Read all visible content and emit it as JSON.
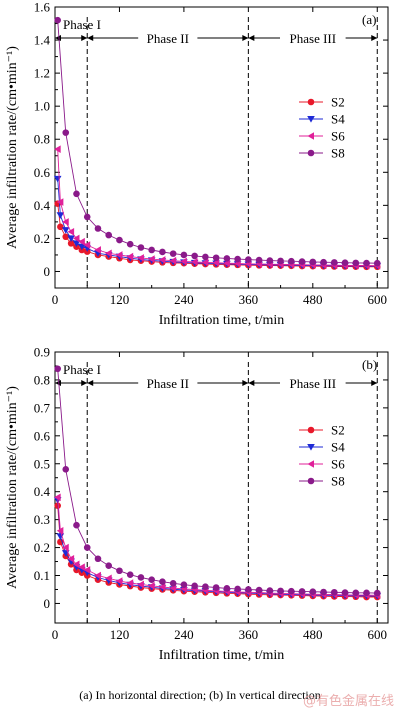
{
  "caption": "(a) In horizontal direction; (b) In vertical direction",
  "watermark": "@有色金属在线",
  "colors": {
    "S2": "#e8182a",
    "S4": "#1e2ad6",
    "S6": "#e0209a",
    "S8": "#8a1a8a"
  },
  "chart_data": [
    {
      "type": "line",
      "panel_tag": "(a)",
      "xlabel": "Infiltration time, t/min",
      "ylabel": "Average infiltration rate/(cm•min⁻¹)",
      "xlim": [
        0,
        620
      ],
      "ylim": [
        -0.1,
        1.6
      ],
      "xticks": [
        0,
        120,
        240,
        360,
        480,
        600
      ],
      "yticks": [
        0,
        0.2,
        0.4,
        0.6,
        0.8,
        1.0,
        1.2,
        1.4,
        1.6
      ],
      "ytick_labels": [
        "0",
        "0.2",
        "0.4",
        "0.6",
        "0.8",
        "1.0",
        "1.2",
        "1.4",
        "1.6"
      ],
      "phase_lines": [
        60,
        360,
        600
      ],
      "phases": [
        {
          "label": "Phase I",
          "from": 0,
          "to": 60
        },
        {
          "label": "Phase II",
          "from": 60,
          "to": 360
        },
        {
          "label": "Phase III",
          "from": 360,
          "to": 600
        }
      ],
      "legend_position": "right",
      "series": [
        {
          "name": "S2",
          "marker": "circle",
          "x": [
            5,
            10,
            20,
            30,
            40,
            50,
            60,
            80,
            100,
            120,
            140,
            160,
            180,
            200,
            220,
            240,
            260,
            280,
            300,
            320,
            340,
            360,
            380,
            400,
            420,
            440,
            460,
            480,
            500,
            520,
            540,
            560,
            580,
            600
          ],
          "y": [
            0.41,
            0.27,
            0.21,
            0.17,
            0.15,
            0.13,
            0.12,
            0.1,
            0.09,
            0.08,
            0.07,
            0.065,
            0.06,
            0.055,
            0.052,
            0.05,
            0.047,
            0.045,
            0.043,
            0.041,
            0.04,
            0.038,
            0.037,
            0.036,
            0.035,
            0.034,
            0.033,
            0.032,
            0.031,
            0.03,
            0.03,
            0.029,
            0.028,
            0.028
          ]
        },
        {
          "name": "S4",
          "marker": "triangle-down",
          "x": [
            5,
            10,
            20,
            30,
            40,
            50,
            60,
            80,
            100,
            120,
            140,
            160,
            180,
            200,
            220,
            240,
            260,
            280,
            300,
            320,
            340,
            360,
            380,
            400,
            420,
            440,
            460,
            480,
            500,
            520,
            540,
            560,
            580,
            600
          ],
          "y": [
            0.56,
            0.34,
            0.25,
            0.2,
            0.17,
            0.15,
            0.14,
            0.11,
            0.1,
            0.09,
            0.08,
            0.073,
            0.067,
            0.062,
            0.058,
            0.055,
            0.052,
            0.05,
            0.048,
            0.046,
            0.044,
            0.042,
            0.041,
            0.04,
            0.039,
            0.038,
            0.037,
            0.036,
            0.035,
            0.034,
            0.034,
            0.033,
            0.032,
            0.032
          ]
        },
        {
          "name": "S6",
          "marker": "triangle-left",
          "x": [
            5,
            10,
            20,
            30,
            40,
            50,
            60,
            80,
            100,
            120,
            140,
            160,
            180,
            200,
            220,
            240,
            260,
            280,
            300,
            320,
            340,
            360,
            380,
            400,
            420,
            440,
            460,
            480,
            500,
            520,
            540,
            560,
            580,
            600
          ],
          "y": [
            0.74,
            0.42,
            0.3,
            0.24,
            0.2,
            0.18,
            0.16,
            0.13,
            0.11,
            0.1,
            0.09,
            0.082,
            0.075,
            0.07,
            0.065,
            0.061,
            0.058,
            0.055,
            0.053,
            0.05,
            0.048,
            0.046,
            0.045,
            0.044,
            0.043,
            0.042,
            0.041,
            0.04,
            0.039,
            0.038,
            0.037,
            0.036,
            0.036,
            0.035
          ]
        },
        {
          "name": "S8",
          "marker": "circle",
          "x": [
            5,
            20,
            40,
            60,
            80,
            100,
            120,
            140,
            160,
            180,
            200,
            220,
            240,
            260,
            280,
            300,
            320,
            340,
            360,
            380,
            400,
            420,
            440,
            460,
            480,
            500,
            520,
            540,
            560,
            580,
            600
          ],
          "y": [
            1.52,
            0.84,
            0.47,
            0.33,
            0.26,
            0.22,
            0.19,
            0.165,
            0.145,
            0.13,
            0.118,
            0.108,
            0.1,
            0.094,
            0.088,
            0.083,
            0.079,
            0.075,
            0.072,
            0.069,
            0.066,
            0.064,
            0.062,
            0.06,
            0.058,
            0.056,
            0.055,
            0.053,
            0.052,
            0.051,
            0.05
          ]
        }
      ]
    },
    {
      "type": "line",
      "panel_tag": "(b)",
      "xlabel": "Infiltration time, t/min",
      "ylabel": "Average infiltration rate/(cm•min⁻¹)",
      "xlim": [
        0,
        620
      ],
      "ylim": [
        -0.07,
        0.9
      ],
      "xticks": [
        0,
        120,
        240,
        360,
        480,
        600
      ],
      "yticks": [
        0,
        0.1,
        0.2,
        0.3,
        0.4,
        0.5,
        0.6,
        0.7,
        0.8,
        0.9
      ],
      "ytick_labels": [
        "0",
        "0.1",
        "0.2",
        "0.3",
        "0.4",
        "0.5",
        "0.6",
        "0.7",
        "0.8",
        "0.9"
      ],
      "phase_lines": [
        60,
        360,
        600
      ],
      "phases": [
        {
          "label": "Phase I",
          "from": 0,
          "to": 60
        },
        {
          "label": "Phase II",
          "from": 60,
          "to": 360
        },
        {
          "label": "Phase III",
          "from": 360,
          "to": 600
        }
      ],
      "legend_position": "right",
      "series": [
        {
          "name": "S2",
          "marker": "circle",
          "x": [
            5,
            10,
            20,
            30,
            40,
            50,
            60,
            80,
            100,
            120,
            140,
            160,
            180,
            200,
            220,
            240,
            260,
            280,
            300,
            320,
            340,
            360,
            380,
            400,
            420,
            440,
            460,
            480,
            500,
            520,
            540,
            560,
            580,
            600
          ],
          "y": [
            0.35,
            0.22,
            0.17,
            0.14,
            0.12,
            0.11,
            0.1,
            0.085,
            0.075,
            0.068,
            0.062,
            0.057,
            0.053,
            0.05,
            0.047,
            0.044,
            0.042,
            0.04,
            0.038,
            0.036,
            0.035,
            0.033,
            0.032,
            0.031,
            0.03,
            0.029,
            0.028,
            0.027,
            0.026,
            0.025,
            0.025,
            0.024,
            0.023,
            0.023
          ]
        },
        {
          "name": "S4",
          "marker": "triangle-down",
          "x": [
            5,
            10,
            20,
            30,
            40,
            50,
            60,
            80,
            100,
            120,
            140,
            160,
            180,
            200,
            220,
            240,
            260,
            280,
            300,
            320,
            340,
            360,
            380,
            400,
            420,
            440,
            460,
            480,
            500,
            520,
            540,
            560,
            580,
            600
          ],
          "y": [
            0.37,
            0.24,
            0.18,
            0.15,
            0.13,
            0.12,
            0.11,
            0.093,
            0.082,
            0.074,
            0.067,
            0.062,
            0.058,
            0.054,
            0.051,
            0.048,
            0.046,
            0.044,
            0.042,
            0.04,
            0.038,
            0.037,
            0.036,
            0.034,
            0.033,
            0.032,
            0.031,
            0.03,
            0.029,
            0.029,
            0.028,
            0.027,
            0.027,
            0.026
          ]
        },
        {
          "name": "S6",
          "marker": "triangle-left",
          "x": [
            5,
            10,
            20,
            30,
            40,
            50,
            60,
            80,
            100,
            120,
            140,
            160,
            180,
            200,
            220,
            240,
            260,
            280,
            300,
            320,
            340,
            360,
            380,
            400,
            420,
            440,
            460,
            480,
            500,
            520,
            540,
            560,
            580,
            600
          ],
          "y": [
            0.38,
            0.26,
            0.2,
            0.16,
            0.14,
            0.13,
            0.12,
            0.1,
            0.09,
            0.08,
            0.073,
            0.068,
            0.063,
            0.059,
            0.055,
            0.052,
            0.05,
            0.047,
            0.045,
            0.043,
            0.041,
            0.04,
            0.039,
            0.037,
            0.036,
            0.035,
            0.034,
            0.033,
            0.032,
            0.032,
            0.031,
            0.03,
            0.03,
            0.029
          ]
        },
        {
          "name": "S8",
          "marker": "circle",
          "x": [
            5,
            20,
            40,
            60,
            80,
            100,
            120,
            140,
            160,
            180,
            200,
            220,
            240,
            260,
            280,
            300,
            320,
            340,
            360,
            380,
            400,
            420,
            440,
            460,
            480,
            500,
            520,
            540,
            560,
            580,
            600
          ],
          "y": [
            0.84,
            0.48,
            0.28,
            0.2,
            0.16,
            0.135,
            0.117,
            0.103,
            0.093,
            0.085,
            0.078,
            0.072,
            0.067,
            0.063,
            0.06,
            0.057,
            0.054,
            0.052,
            0.05,
            0.048,
            0.046,
            0.045,
            0.044,
            0.043,
            0.042,
            0.041,
            0.04,
            0.039,
            0.038,
            0.038,
            0.037
          ]
        }
      ]
    }
  ]
}
